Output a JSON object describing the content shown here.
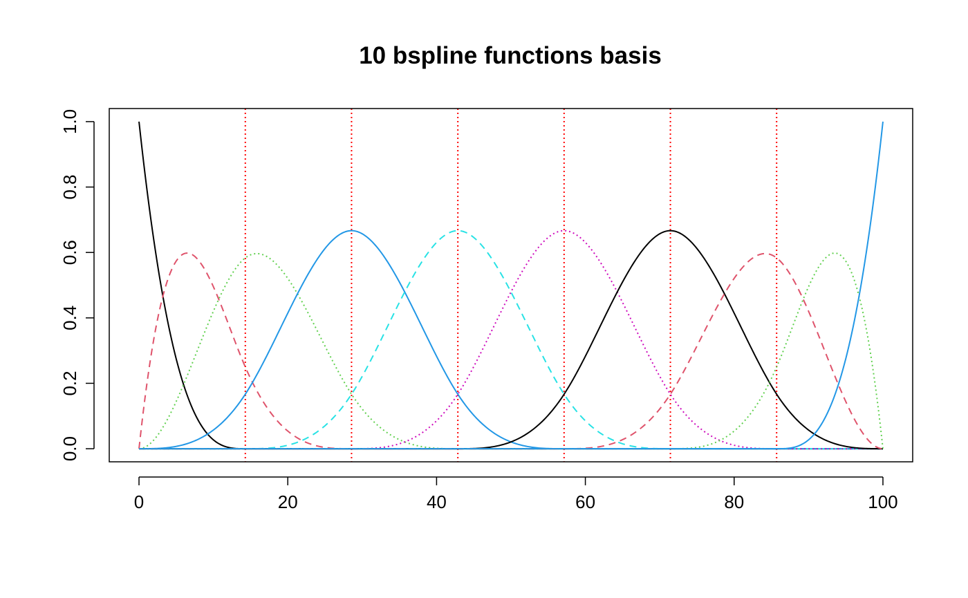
{
  "chart_data": {
    "type": "line",
    "title": "10 bspline functions basis",
    "xlabel": "",
    "ylabel": "",
    "xlim": [
      -4,
      104
    ],
    "ylim": [
      -0.04,
      1.04
    ],
    "x_ticks": [
      0,
      20,
      40,
      60,
      80,
      100
    ],
    "x_tick_labels": [
      "0",
      "20",
      "40",
      "60",
      "80",
      "100"
    ],
    "y_ticks": [
      0.0,
      0.2,
      0.4,
      0.6,
      0.8,
      1.0
    ],
    "y_tick_labels": [
      "0.0",
      "0.2",
      "0.4",
      "0.6",
      "0.8",
      "1.0"
    ],
    "grid": false,
    "legend": "none",
    "domain": [
      0,
      100
    ],
    "knots": [
      0,
      0,
      0,
      0,
      14.29,
      28.57,
      42.86,
      57.14,
      71.43,
      85.71,
      100,
      100,
      100,
      100
    ],
    "interior_knots": [
      14.29,
      28.57,
      42.86,
      57.14,
      71.43,
      85.71
    ],
    "knot_line_color": "#FF0000",
    "series": [
      {
        "index": 1,
        "color": "#000000",
        "dash": "solid",
        "peak_x": 0,
        "peak_y": 1.0
      },
      {
        "index": 2,
        "color": "#DF536B",
        "dash": "dashed",
        "peak_x": 6.3,
        "peak_y": 0.6
      },
      {
        "index": 3,
        "color": "#61D04F",
        "dash": "dotted",
        "peak_x": 15.8,
        "peak_y": 0.6
      },
      {
        "index": 4,
        "color": "#2297E6",
        "dash": "solid",
        "peak_x": 28.57,
        "peak_y": 0.667
      },
      {
        "index": 5,
        "color": "#28E2E5",
        "dash": "dashed",
        "peak_x": 42.86,
        "peak_y": 0.667
      },
      {
        "index": 6,
        "color": "#CD0BBC",
        "dash": "dotted",
        "peak_x": 57.14,
        "peak_y": 0.667
      },
      {
        "index": 7,
        "color": "#000000",
        "dash": "solid",
        "peak_x": 71.43,
        "peak_y": 0.667
      },
      {
        "index": 8,
        "color": "#DF536B",
        "dash": "dashed",
        "peak_x": 84.2,
        "peak_y": 0.6
      },
      {
        "index": 9,
        "color": "#61D04F",
        "dash": "dotted",
        "peak_x": 93.7,
        "peak_y": 0.6
      },
      {
        "index": 10,
        "color": "#2297E6",
        "dash": "solid",
        "peak_x": 100,
        "peak_y": 1.0
      }
    ]
  }
}
